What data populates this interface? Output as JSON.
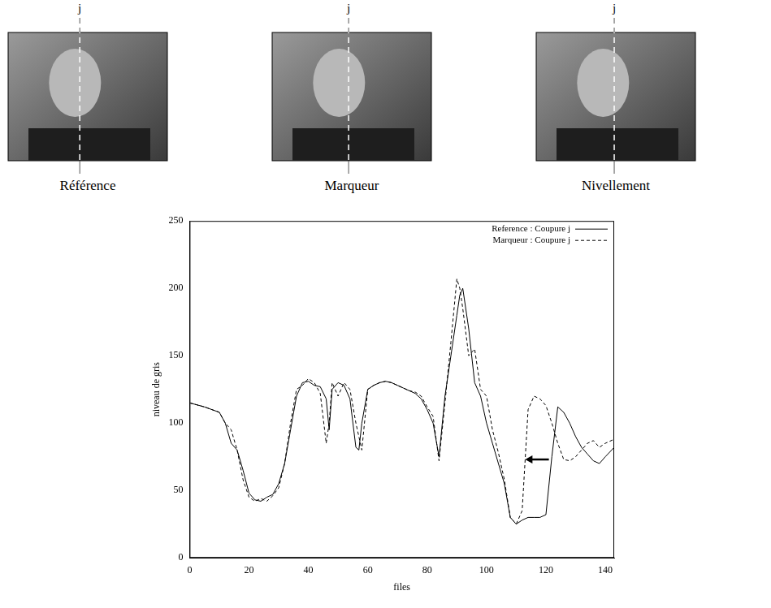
{
  "panels": [
    {
      "marker_label": "j",
      "caption": "Référence"
    },
    {
      "marker_label": "j",
      "caption": "Marqueur"
    },
    {
      "marker_label": "j",
      "caption": "Nivellement"
    }
  ],
  "chart_data": {
    "type": "line",
    "x_label": "files",
    "y_label": "niveau de gris",
    "x": [
      0,
      5,
      10,
      12,
      14,
      16,
      18,
      20,
      22,
      24,
      26,
      28,
      30,
      32,
      34,
      36,
      38,
      40,
      42,
      44,
      46,
      47,
      48,
      50,
      52,
      54,
      56,
      57,
      58,
      60,
      62,
      64,
      66,
      68,
      70,
      72,
      74,
      76,
      78,
      80,
      82,
      84,
      86,
      88,
      90,
      91,
      92,
      94,
      96,
      98,
      100,
      102,
      104,
      106,
      108,
      110,
      112,
      114,
      116,
      118,
      120,
      122,
      124,
      126,
      128,
      130,
      132,
      134,
      136,
      138,
      140,
      143
    ],
    "series": [
      {
        "name": "Reference : Coupure j",
        "color": "#000000",
        "line_style": "solid",
        "values": [
          115,
          112,
          108,
          100,
          85,
          80,
          65,
          48,
          43,
          42,
          45,
          47,
          55,
          70,
          95,
          120,
          130,
          131,
          128,
          127,
          118,
          95,
          125,
          130,
          128,
          118,
          82,
          80,
          100,
          125,
          128,
          130,
          131,
          130,
          128,
          126,
          124,
          122,
          118,
          110,
          100,
          75,
          120,
          150,
          180,
          195,
          200,
          170,
          130,
          120,
          100,
          85,
          70,
          55,
          30,
          25,
          28,
          30,
          30,
          30,
          32,
          75,
          112,
          108,
          100,
          90,
          82,
          77,
          72,
          70,
          75,
          82
        ]
      },
      {
        "name": "Marqueur : Coupure j",
        "color": "#000000",
        "line_style": "dashed",
        "values": [
          115,
          112,
          108,
          100,
          95,
          80,
          58,
          45,
          42,
          44,
          42,
          46,
          52,
          70,
          100,
          125,
          128,
          133,
          130,
          122,
          85,
          100,
          130,
          120,
          130,
          125,
          100,
          90,
          80,
          125,
          128,
          130,
          131,
          130,
          128,
          126,
          124,
          123,
          120,
          112,
          105,
          72,
          115,
          160,
          207,
          200,
          185,
          150,
          155,
          125,
          120,
          95,
          78,
          58,
          30,
          25,
          35,
          110,
          120,
          118,
          113,
          100,
          85,
          73,
          72,
          75,
          80,
          85,
          87,
          82,
          85,
          88
        ]
      }
    ],
    "xlim": [
      0,
      143
    ],
    "xticks": [
      0,
      20,
      40,
      60,
      80,
      100,
      120,
      140
    ],
    "ylim": [
      0,
      250
    ],
    "yticks": [
      0,
      50,
      100,
      150,
      200,
      250
    ],
    "grid": false,
    "legend": "top-right",
    "annotations": [
      {
        "type": "arrow",
        "x_from": 121,
        "x_to": 113,
        "y": 73
      }
    ]
  }
}
